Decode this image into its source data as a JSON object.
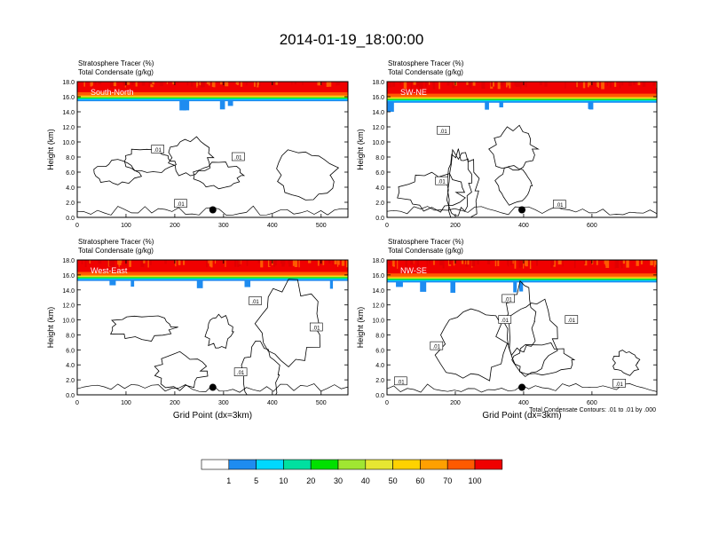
{
  "title": "2014-01-19_18:00:00",
  "chart_data": [
    {
      "type": "contour",
      "label": "South-North",
      "field_labels": [
        "Stratosphere Tracer   (%)",
        "Total Condensate   (g/kg)"
      ],
      "ylabel": "Height (km)",
      "xlabel": "",
      "xlim": [
        0,
        555
      ],
      "ylim": [
        0,
        18
      ],
      "xticks": [
        "0",
        "100",
        "200",
        "300",
        "400",
        "500"
      ],
      "xtick_values": [
        0,
        100,
        200,
        300,
        400,
        500
      ],
      "yticks": [
        "0.0",
        "2.0",
        "4.0",
        "6.0",
        "8.0",
        "10.0",
        "12.0",
        "14.0",
        "16.0",
        "18.0"
      ],
      "tracer_base_km": 15.4,
      "contour_labels": [
        {
          "text": ".01",
          "x": 165,
          "y": 9.0
        },
        {
          "text": ".01",
          "x": 330,
          "y": 8.0
        },
        {
          "text": ".01",
          "x": 212,
          "y": 1.8
        }
      ],
      "marker": {
        "x": 278,
        "y": 1.0
      }
    },
    {
      "type": "contour",
      "label": "SW-NE",
      "field_labels": [
        "Stratosphere Tracer   (%)",
        "Total Condensate   (g/kg)"
      ],
      "ylabel": "Height (km)",
      "xlabel": "",
      "xlim": [
        0,
        790
      ],
      "ylim": [
        0,
        18
      ],
      "xticks": [
        "0",
        "200",
        "400",
        "600"
      ],
      "xtick_values": [
        0,
        200,
        400,
        600
      ],
      "yticks": [
        "0.0",
        "2.0",
        "4.0",
        "6.0",
        "8.0",
        "10.0",
        "12.0",
        "14.0",
        "16.0",
        "18.0"
      ],
      "tracer_base_km": 15.2,
      "contour_labels": [
        {
          "text": ".01",
          "x": 165,
          "y": 11.5
        },
        {
          "text": ".01",
          "x": 160,
          "y": 4.8
        },
        {
          "text": ".01",
          "x": 505,
          "y": 1.7
        }
      ],
      "marker": {
        "x": 395,
        "y": 1.0
      }
    },
    {
      "type": "contour",
      "label": "West-East",
      "field_labels": [
        "Stratosphere Tracer   (%)",
        "Total Condensate   (g/kg)"
      ],
      "ylabel": "Height (km)",
      "xlabel": "Grid Point (dx=3km)",
      "xlim": [
        0,
        555
      ],
      "ylim": [
        0,
        18
      ],
      "xticks": [
        "0",
        "100",
        "200",
        "300",
        "400",
        "500"
      ],
      "xtick_values": [
        0,
        100,
        200,
        300,
        400,
        500
      ],
      "yticks": [
        "0.0",
        "2.0",
        "4.0",
        "6.0",
        "8.0",
        "10.0",
        "12.0",
        "14.0",
        "16.0",
        "18.0"
      ],
      "tracer_base_km": 15.2,
      "contour_labels": [
        {
          "text": ".01",
          "x": 365,
          "y": 12.5
        },
        {
          "text": ".01",
          "x": 490,
          "y": 9.0
        },
        {
          "text": ".01",
          "x": 335,
          "y": 3.0
        }
      ],
      "marker": {
        "x": 278,
        "y": 1.0
      }
    },
    {
      "type": "contour",
      "label": "NW-SE",
      "field_labels": [
        "Stratosphere Tracer   (%)",
        "Total Condensate   (g/kg)"
      ],
      "ylabel": "Height (km)",
      "xlabel": "Grid Point (dx=3km)",
      "xlim": [
        0,
        790
      ],
      "ylim": [
        0,
        18
      ],
      "xticks": [
        "0",
        "200",
        "400",
        "600"
      ],
      "xtick_values": [
        0,
        200,
        400,
        600
      ],
      "yticks": [
        "0.0",
        "2.0",
        "4.0",
        "6.0",
        "8.0",
        "10.0",
        "12.0",
        "14.0",
        "16.0",
        "18.0"
      ],
      "tracer_base_km": 15.0,
      "contour_labels": [
        {
          "text": ".01",
          "x": 355,
          "y": 12.8
        },
        {
          "text": ".01",
          "x": 345,
          "y": 10.0
        },
        {
          "text": ".01",
          "x": 145,
          "y": 6.5
        },
        {
          "text": ".01",
          "x": 40,
          "y": 1.8
        },
        {
          "text": ".01",
          "x": 680,
          "y": 1.5
        },
        {
          "text": ".01",
          "x": 540,
          "y": 10.0
        }
      ],
      "note": "Total Condensate Contours: .01 to .01 by .000",
      "marker": {
        "x": 395,
        "y": 1.0
      }
    }
  ],
  "colorbar": {
    "labels": [
      "1",
      "5",
      "10",
      "20",
      "30",
      "40",
      "50",
      "60",
      "70",
      "100"
    ],
    "colors": [
      "#ffffff",
      "#1e8cf0",
      "#00d8ff",
      "#00e0a0",
      "#00e000",
      "#a0e632",
      "#e6e632",
      "#ffd200",
      "#ffa000",
      "#ff5a00",
      "#f00000"
    ]
  }
}
